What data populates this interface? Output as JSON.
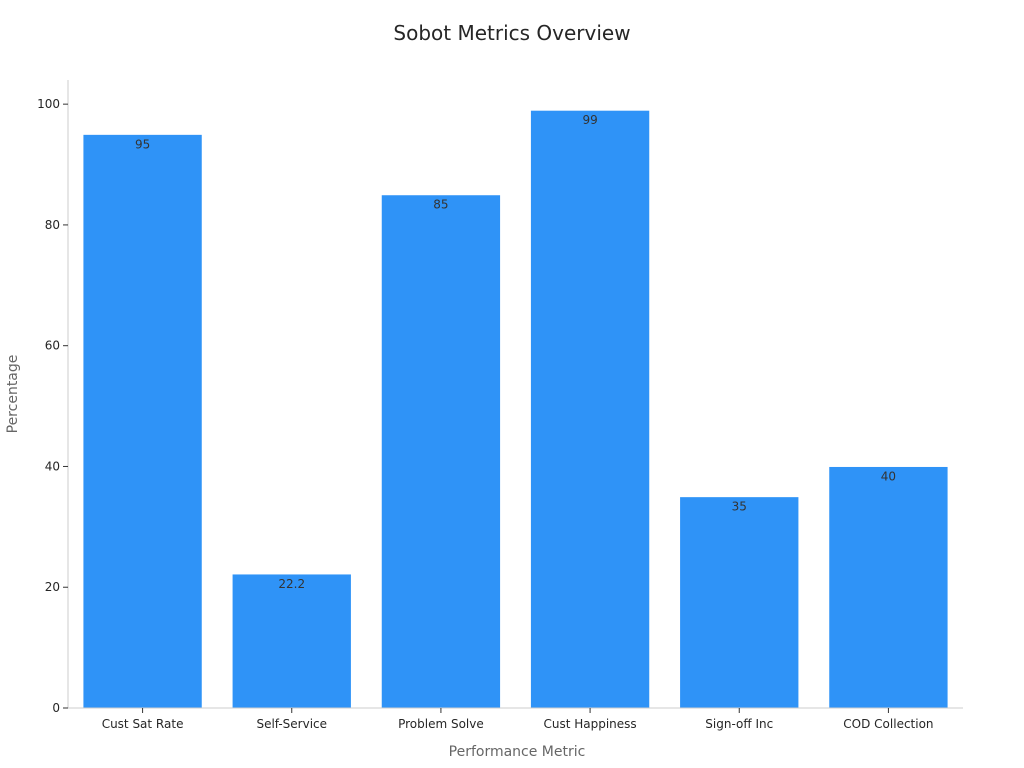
{
  "chart_data": {
    "type": "bar",
    "title": "Sobot Metrics Overview",
    "xlabel": "Performance Metric",
    "ylabel": "Percentage",
    "categories": [
      "Cust Sat Rate",
      "Self-Service",
      "Problem Solve",
      "Cust Happiness",
      "Sign-off Inc",
      "COD Collection"
    ],
    "values": [
      95,
      22.2,
      85,
      99,
      35,
      40
    ],
    "data_labels": [
      "95",
      "22.2",
      "85",
      "99",
      "35",
      "40"
    ],
    "ylim": [
      0,
      104
    ],
    "yticks": [
      0,
      20,
      40,
      60,
      80,
      100
    ],
    "grid": false,
    "legend": "none",
    "bar_color": "#2f93f7"
  }
}
